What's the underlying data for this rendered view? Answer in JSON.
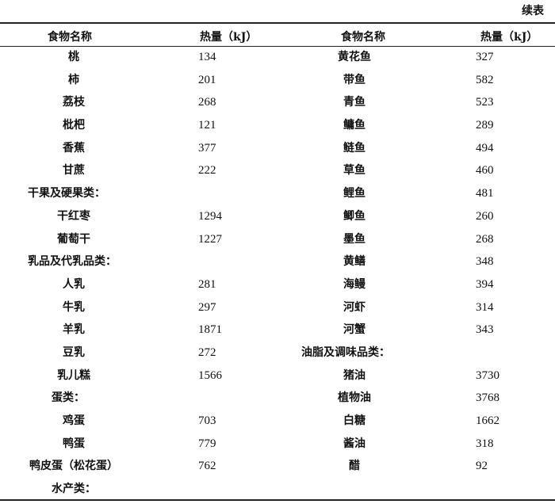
{
  "continued_label": "续表",
  "headers": {
    "name": "食物名称",
    "energy": "热量（kJ）"
  },
  "left_rows": [
    {
      "name": "桃",
      "value": "134"
    },
    {
      "name": "柿",
      "value": "201"
    },
    {
      "name": "荔枝",
      "value": "268"
    },
    {
      "name": "枇杷",
      "value": "121"
    },
    {
      "name": "香蕉",
      "value": "377"
    },
    {
      "name": "甘蔗",
      "value": "222"
    },
    {
      "name": "干果及硬果类：",
      "value": "",
      "category": true
    },
    {
      "name": "干红枣",
      "value": "1294"
    },
    {
      "name": "葡萄干",
      "value": "1227"
    },
    {
      "name": "乳品及代乳品类：",
      "value": "",
      "category": true
    },
    {
      "name": "人乳",
      "value": "281"
    },
    {
      "name": "牛乳",
      "value": "297"
    },
    {
      "name": "羊乳",
      "value": "1871"
    },
    {
      "name": "豆乳",
      "value": "272"
    },
    {
      "name": "乳儿糕",
      "value": "1566"
    },
    {
      "name": "蛋类：",
      "value": "",
      "category": true,
      "indent": true
    },
    {
      "name": "鸡蛋",
      "value": "703"
    },
    {
      "name": "鸭蛋",
      "value": "779"
    },
    {
      "name": "鸭皮蛋（松花蛋）",
      "value": "762"
    },
    {
      "name": "水产类：",
      "value": "",
      "category": true,
      "indent": true
    }
  ],
  "right_rows": [
    {
      "name": "黄花鱼",
      "value": "327"
    },
    {
      "name": "带鱼",
      "value": "582"
    },
    {
      "name": "青鱼",
      "value": "523"
    },
    {
      "name": "鳙鱼",
      "value": "289"
    },
    {
      "name": "鲢鱼",
      "value": "494"
    },
    {
      "name": "草鱼",
      "value": "460"
    },
    {
      "name": "鲤鱼",
      "value": "481"
    },
    {
      "name": "鲫鱼",
      "value": "260"
    },
    {
      "name": "墨鱼",
      "value": "268"
    },
    {
      "name": "黄鳝",
      "value": "348"
    },
    {
      "name": "海鳗",
      "value": "394"
    },
    {
      "name": "河虾",
      "value": "314"
    },
    {
      "name": "河蟹",
      "value": "343"
    },
    {
      "name": "油脂及调味品类：",
      "value": "",
      "category": true
    },
    {
      "name": "猪油",
      "value": "3730"
    },
    {
      "name": "植物油",
      "value": "3768"
    },
    {
      "name": "白糖",
      "value": "1662"
    },
    {
      "name": "酱油",
      "value": "318"
    },
    {
      "name": "醋",
      "value": "92"
    }
  ]
}
